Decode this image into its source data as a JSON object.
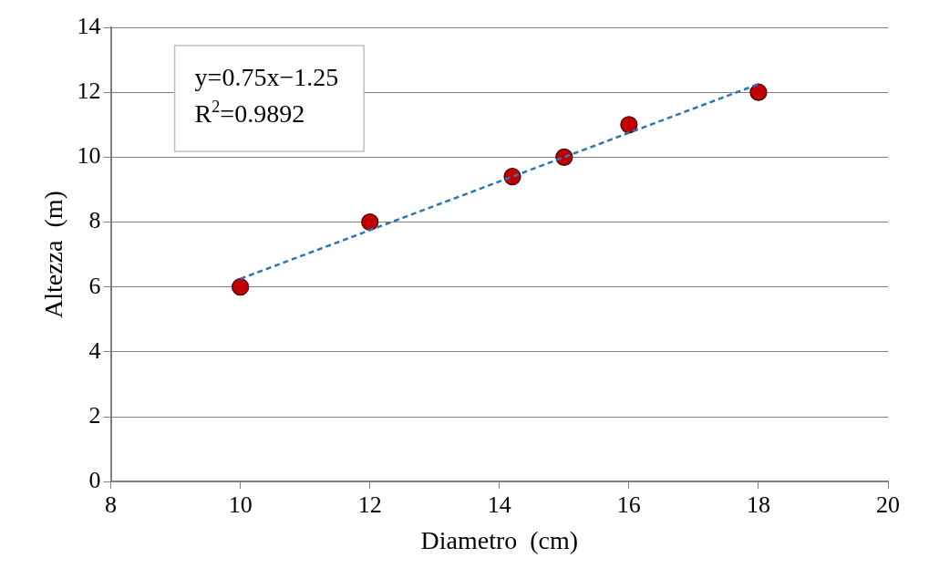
{
  "chart_data": {
    "type": "scatter",
    "xlabel": "Diametro  (cm)",
    "ylabel": "Altezza  (m)",
    "xlim": [
      8,
      20
    ],
    "xticks": [
      8,
      10,
      12,
      14,
      16,
      18,
      20
    ],
    "ylim": [
      0,
      14
    ],
    "yticks": [
      0,
      2,
      4,
      6,
      8,
      10,
      12,
      14
    ],
    "grid": "y",
    "legend": false,
    "marker": "circle",
    "series": [
      {
        "type": "scatter",
        "color": "#c00000",
        "x": [
          10,
          12,
          14.2,
          15,
          16,
          18
        ],
        "values": [
          6,
          8,
          9.4,
          10,
          11,
          12
        ]
      },
      {
        "type": "line",
        "color": "#2e75b6",
        "line_style": "dashed",
        "marker": "none",
        "x": [
          10,
          18
        ],
        "values": [
          6.25,
          12.25
        ]
      }
    ],
    "annotations": [
      "y=0.75x−1.25",
      "R$^{2}$=0.9892"
    ]
  }
}
